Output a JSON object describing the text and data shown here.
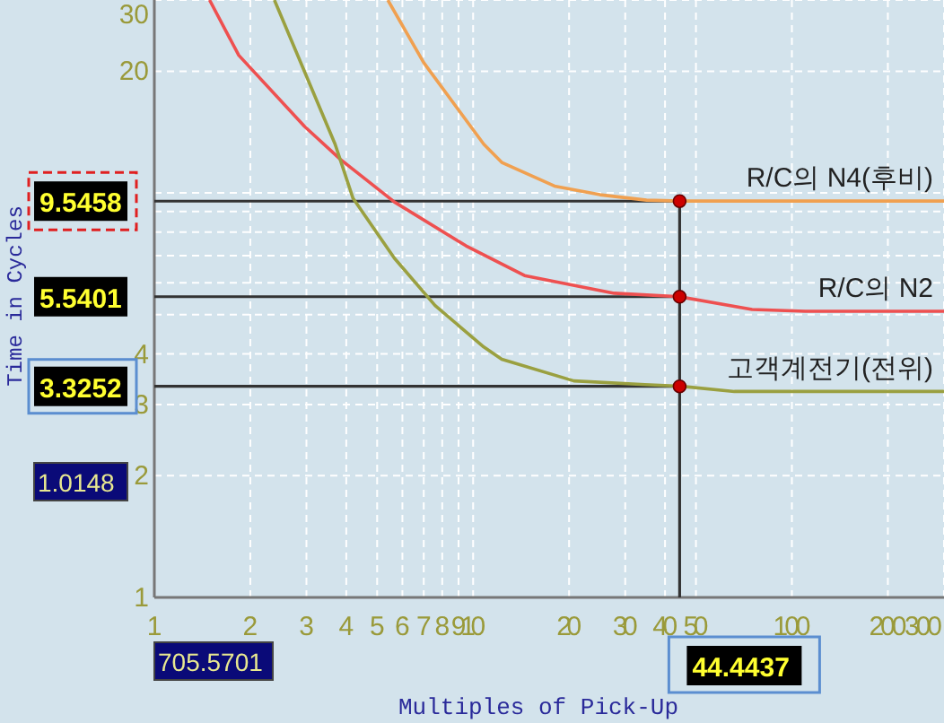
{
  "chart_data": {
    "type": "line",
    "xlabel": "Multiples of Pick-Up",
    "ylabel": "Time in Cycles",
    "log": "xy",
    "grid": true,
    "xlim": [
      1,
      300
    ],
    "ylim": [
      1,
      30
    ],
    "xticks": [
      1,
      2,
      3,
      4,
      5,
      6,
      7,
      8,
      9,
      10,
      20,
      30,
      40,
      50,
      100,
      200,
      300
    ],
    "yticks": [
      1,
      2,
      3,
      4,
      {
        "value": 5,
        "label": null
      },
      {
        "value": 6,
        "label": null
      },
      {
        "value": 7,
        "label": null
      },
      {
        "value": 8,
        "label": null
      },
      {
        "value": 9,
        "label": null
      },
      {
        "value": 10,
        "label": null
      },
      20,
      30
    ],
    "series": [
      {
        "name": "R/C의 N4(후비)",
        "color": "#f0a050",
        "x": [
          5.4,
          7,
          10.8,
          12.3,
          18,
          25,
          35,
          44.44,
          300
        ],
        "values": [
          30,
          21,
          13.2,
          11.9,
          10.4,
          9.9,
          9.6,
          9.55,
          9.55
        ]
      },
      {
        "name": "R/C의 N2",
        "color": "#ee5050",
        "x": [
          1.49,
          1.84,
          2.96,
          3.84,
          5.66,
          9.5,
          14.5,
          27.7,
          44.44,
          75,
          110,
          300
        ],
        "values": [
          30,
          21.9,
          14.6,
          12.1,
          9.5,
          7.4,
          6.25,
          5.65,
          5.54,
          5.15,
          5.1,
          5.1
        ]
      },
      {
        "name": "고객계전기(전위)",
        "color": "#9aa040",
        "x": [
          2.38,
          3.69,
          4.2,
          5.66,
          7.6,
          10.8,
          12.3,
          20.7,
          34.6,
          44.44,
          66,
          300
        ],
        "values": [
          30,
          13.2,
          9.7,
          6.9,
          5.27,
          4.16,
          3.88,
          3.43,
          3.36,
          3.33,
          3.23,
          3.23
        ]
      }
    ],
    "ref_lines": [
      {
        "axis": "y",
        "value": 9.5458,
        "label": "9.5458"
      },
      {
        "axis": "y",
        "value": 5.5401,
        "label": "5.5401"
      },
      {
        "axis": "y",
        "value": 3.3252,
        "label": "3.3252"
      },
      {
        "axis": "x",
        "value": 44.4437,
        "label": "44.4437"
      }
    ],
    "annotations": [
      "1.0148",
      "705.5701"
    ]
  }
}
